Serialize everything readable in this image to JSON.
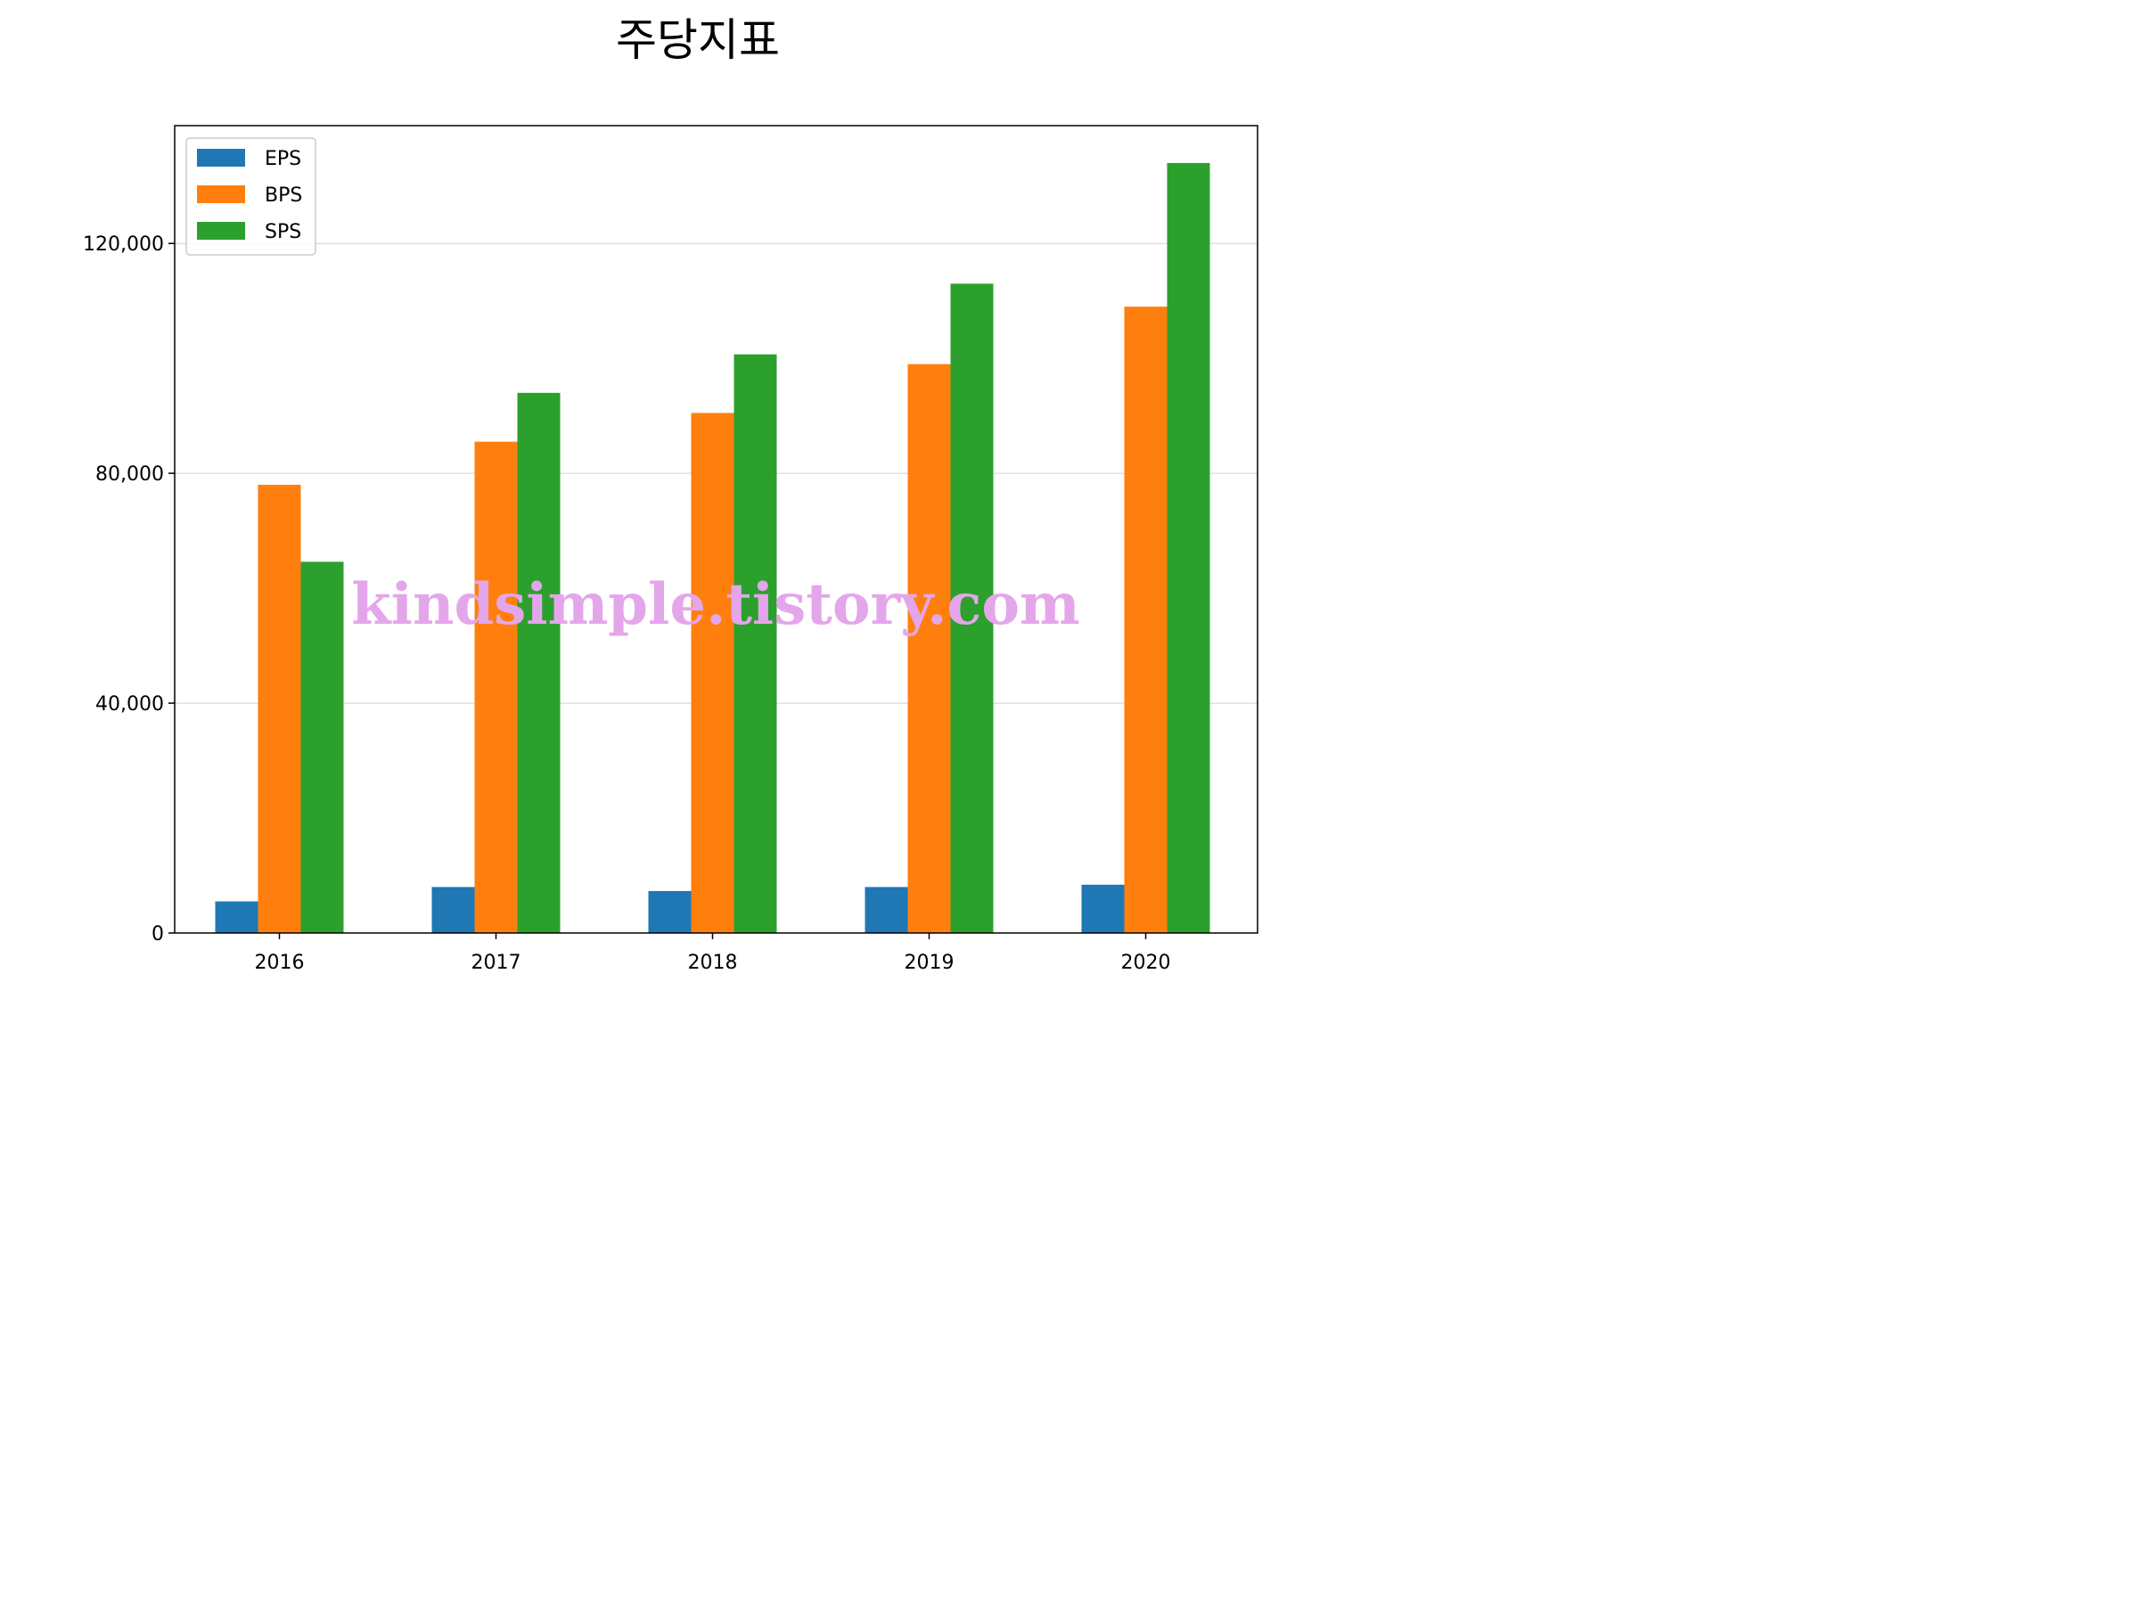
{
  "chart_data": {
    "type": "bar",
    "title": "주당지표",
    "xlabel": "",
    "ylabel": "",
    "categories": [
      "2016",
      "2017",
      "2018",
      "2019",
      "2020"
    ],
    "series": [
      {
        "name": "EPS",
        "color": "#1f77b4",
        "values": [
          5500,
          8000,
          7300,
          8000,
          8400
        ]
      },
      {
        "name": "BPS",
        "color": "#ff7f0e",
        "values": [
          78000,
          85500,
          90500,
          99000,
          109000
        ]
      },
      {
        "name": "SPS",
        "color": "#2ca02c",
        "values": [
          64600,
          94000,
          100700,
          113000,
          134000
        ]
      }
    ],
    "ylim": [
      0,
      140500
    ],
    "yticks": [
      0,
      40000,
      80000,
      120000
    ],
    "ytick_labels": [
      "0",
      "40,000",
      "80,000",
      "120,000"
    ],
    "grid": "horizontal",
    "legend_position": "top-left"
  },
  "watermark": "kindsimple.tistory.com"
}
